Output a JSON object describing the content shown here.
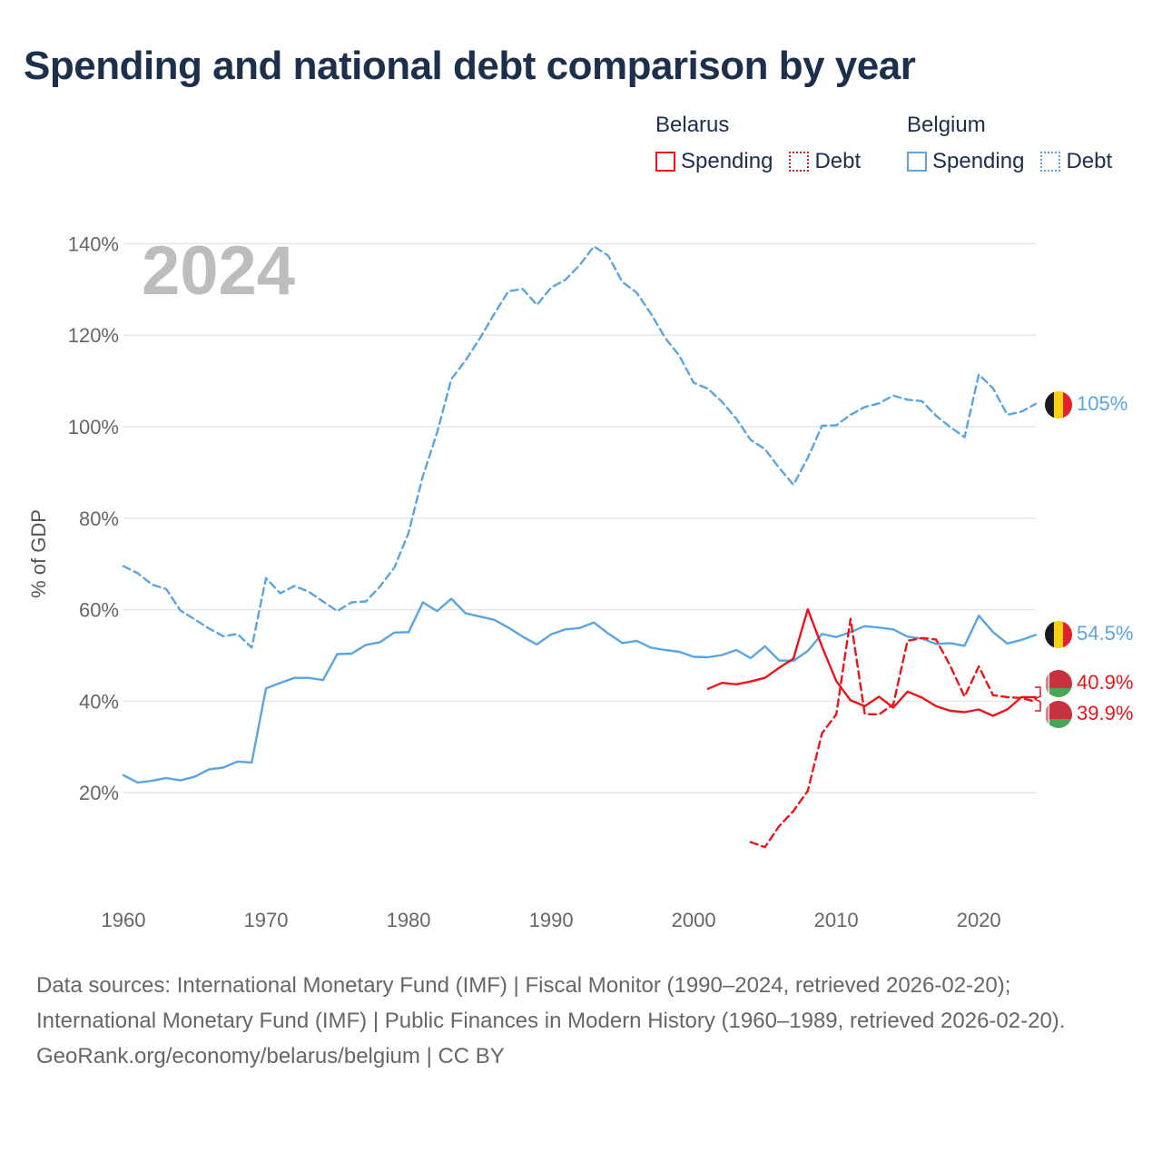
{
  "title": "Spending and national debt comparison by year",
  "legend": {
    "groups": [
      {
        "name": "Belarus",
        "color": "#e8151b",
        "items": [
          "Spending",
          "Debt"
        ]
      },
      {
        "name": "Belgium",
        "color": "#5ba4e0",
        "items": [
          "Spending",
          "Debt"
        ]
      }
    ]
  },
  "sources": {
    "line1": "Data sources: International Monetary Fund (IMF) | Fiscal Monitor (1990–2024, retrieved 2026-02-20); International Monetary Fund (IMF) | Public Finances in Modern History (1960–1989, retrieved 2026-02-20).",
    "line2": "GeoRank.org/economy/belarus/belgium | CC BY"
  },
  "chart_data": {
    "type": "line",
    "year_label": "2024",
    "ylabel": "% of GDP",
    "xlim": [
      1960,
      2024
    ],
    "ylim": [
      0,
      145
    ],
    "yticks": [
      20,
      40,
      60,
      80,
      100,
      120,
      140
    ],
    "ytick_labels": [
      "20%",
      "40%",
      "60%",
      "80%",
      "100%",
      "120%",
      "140%"
    ],
    "xticks": [
      1960,
      1970,
      1980,
      1990,
      2000,
      2010,
      2020
    ],
    "xtick_labels": [
      "1960",
      "1970",
      "1980",
      "1990",
      "2000",
      "2010",
      "2020"
    ],
    "series": [
      {
        "name": "Belgium Spending",
        "country": "Belgium",
        "kind": "Spending",
        "color": "#5ba4e0",
        "dash": false,
        "x_start": 1960,
        "values": [
          23.8,
          22.2,
          22.6,
          23.2,
          22.7,
          23.5,
          25.1,
          25.5,
          26.8,
          26.6,
          42.8,
          44.0,
          45.1,
          45.1,
          44.6,
          50.3,
          50.4,
          52.3,
          52.9,
          55.0,
          55.1,
          61.6,
          59.7,
          62.4,
          59.2,
          58.5,
          57.8,
          56.1,
          54.1,
          52.4,
          54.6,
          55.7,
          56.0,
          57.2,
          54.8,
          52.7,
          53.2,
          51.7,
          51.2,
          50.8,
          49.7,
          49.6,
          50.1,
          51.2,
          49.4,
          52.0,
          48.9,
          48.8,
          51.0,
          54.7,
          54.0,
          55.1,
          56.4,
          56.1,
          55.7,
          54.1,
          53.7,
          52.5,
          52.7,
          52.1,
          58.7,
          55.1,
          52.6,
          53.4,
          54.5
        ],
        "end_label": "54.5%"
      },
      {
        "name": "Belgium Debt",
        "country": "Belgium",
        "kind": "Debt",
        "color": "#5ba4e0",
        "dash": true,
        "x_start": 1960,
        "values": [
          69.5,
          68.0,
          65.5,
          64.5,
          59.8,
          57.9,
          55.9,
          54.2,
          54.7,
          51.7,
          66.9,
          63.6,
          65.2,
          63.9,
          61.8,
          59.7,
          61.6,
          61.8,
          65.1,
          69.2,
          76.8,
          89.2,
          98.7,
          110.4,
          114.5,
          119.3,
          124.6,
          129.6,
          130.1,
          126.6,
          130.4,
          132.1,
          135.3,
          139.4,
          137.4,
          131.6,
          129.3,
          124.7,
          119.4,
          115.5,
          109.6,
          108.3,
          105.4,
          101.7,
          97.1,
          95.1,
          91.0,
          87.3,
          93.2,
          100.2,
          100.3,
          102.6,
          104.3,
          105.1,
          106.8,
          105.9,
          105.6,
          102.4,
          99.9,
          97.7,
          111.4,
          108.4,
          102.6,
          103.3,
          105.0
        ],
        "end_label": "105%"
      },
      {
        "name": "Belarus Spending",
        "country": "Belarus",
        "kind": "Spending",
        "color": "#e8151b",
        "dash": false,
        "x_start": 2001,
        "values": [
          42.7,
          44.0,
          43.7,
          44.3,
          45.1,
          47.3,
          49.3,
          60.1,
          51.9,
          44.4,
          40.2,
          38.9,
          41.0,
          38.6,
          42.1,
          40.8,
          38.9,
          37.9,
          37.6,
          38.2,
          36.8,
          38.2,
          40.9,
          40.9
        ],
        "end_label": "40.9%"
      },
      {
        "name": "Belarus Debt",
        "country": "Belarus",
        "kind": "Debt",
        "color": "#e8151b",
        "dash": true,
        "x_start": 2004,
        "values": [
          9.2,
          8.1,
          12.7,
          16.0,
          20.4,
          33.0,
          37.1,
          58.0,
          37.2,
          37.1,
          39.3,
          53.2,
          53.8,
          53.5,
          47.7,
          41.0,
          47.6,
          41.3,
          40.9,
          40.7,
          39.9
        ],
        "end_label": "39.9%"
      }
    ]
  }
}
